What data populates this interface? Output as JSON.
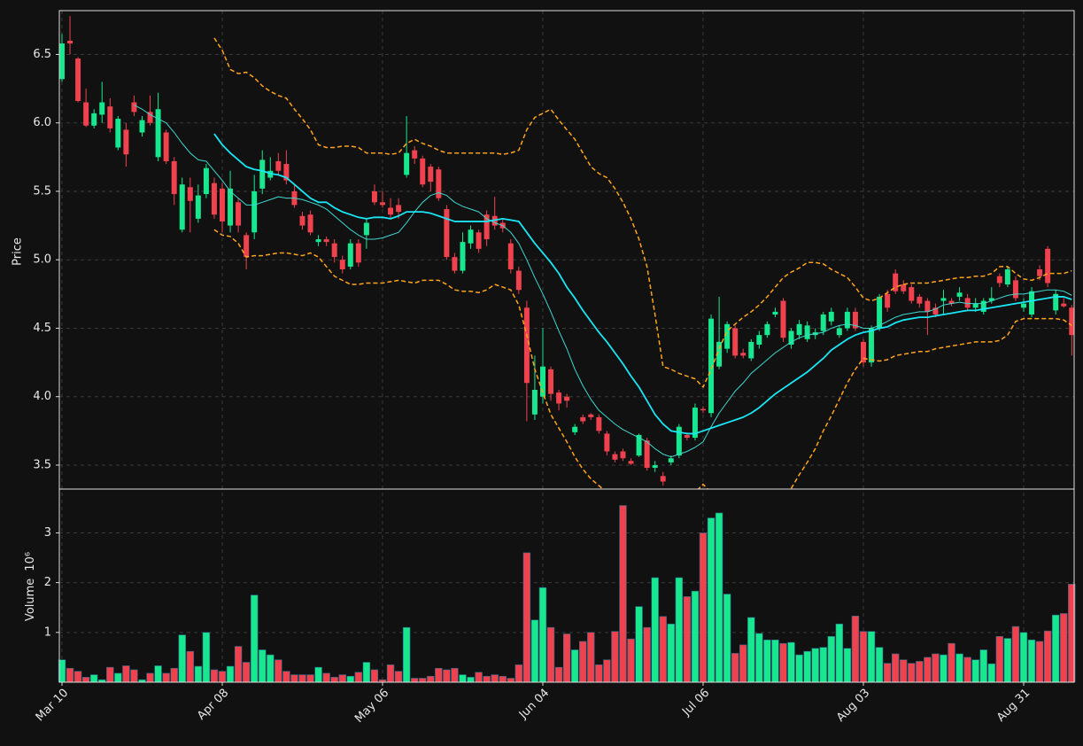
{
  "chart_data": {
    "type": "candlestick",
    "ylabel": "Price",
    "volume_label": "Volume",
    "volume_scale": "10⁶",
    "categories": [
      "Mar 10",
      null,
      null,
      null,
      null,
      null,
      null,
      null,
      null,
      null,
      null,
      null,
      null,
      null,
      null,
      null,
      null,
      null,
      null,
      null,
      "Apr 08",
      null,
      null,
      null,
      null,
      null,
      null,
      null,
      null,
      null,
      null,
      null,
      null,
      null,
      null,
      null,
      null,
      null,
      null,
      null,
      "May 06",
      null,
      null,
      null,
      null,
      null,
      null,
      null,
      null,
      null,
      null,
      null,
      null,
      null,
      null,
      null,
      null,
      null,
      null,
      null,
      "Jun 04",
      null,
      null,
      null,
      null,
      null,
      null,
      null,
      null,
      null,
      null,
      null,
      null,
      null,
      null,
      null,
      null,
      null,
      null,
      null,
      "Jul 06",
      null,
      null,
      null,
      null,
      null,
      null,
      null,
      null,
      null,
      null,
      null,
      null,
      null,
      null,
      null,
      null,
      null,
      null,
      null,
      "Aug 03",
      null,
      null,
      null,
      null,
      null,
      null,
      null,
      null,
      null,
      null,
      null,
      null,
      null,
      null,
      null,
      null,
      null,
      null,
      null,
      "Aug 31",
      null,
      null,
      null,
      null,
      null,
      null
    ],
    "open": [
      6.32,
      6.6,
      6.47,
      6.15,
      5.98,
      6.06,
      6.12,
      5.82,
      5.95,
      6.15,
      5.93,
      6.08,
      5.75,
      5.93,
      5.72,
      5.22,
      5.53,
      5.3,
      5.48,
      5.56,
      5.52,
      5.25,
      5.42,
      5.18,
      5.2,
      5.52,
      5.6,
      5.72,
      5.7,
      5.5,
      5.32,
      5.33,
      5.13,
      5.15,
      5.12,
      5.0,
      4.95,
      5.12,
      5.18,
      5.5,
      5.42,
      5.38,
      5.4,
      5.62,
      5.8,
      5.74,
      5.68,
      5.66,
      5.37,
      5.02,
      4.92,
      5.12,
      5.2,
      5.33,
      5.32,
      5.27,
      5.12,
      4.92,
      4.65,
      3.87,
      4.0,
      4.2,
      4.03,
      4.0,
      3.74,
      3.85,
      3.87,
      3.85,
      3.73,
      3.58,
      3.6,
      3.53,
      3.57,
      3.68,
      3.48,
      3.42,
      3.52,
      3.57,
      3.72,
      3.7,
      3.91,
      3.88,
      4.22,
      4.35,
      4.5,
      4.32,
      4.28,
      4.38,
      4.45,
      4.6,
      4.7,
      4.38,
      4.45,
      4.42,
      4.45,
      4.48,
      4.55,
      4.45,
      4.5,
      4.62,
      4.4,
      4.25,
      4.5,
      4.75,
      4.9,
      4.82,
      4.8,
      4.73,
      4.7,
      4.65,
      4.7,
      4.7,
      4.73,
      4.72,
      4.65,
      4.62,
      4.7,
      4.88,
      4.82,
      4.85,
      4.65,
      4.6,
      4.93,
      5.08,
      4.63,
      4.68,
      4.65
    ],
    "high": [
      6.65,
      6.78,
      6.48,
      6.25,
      6.1,
      6.3,
      6.18,
      6.05,
      6.0,
      6.2,
      6.05,
      6.2,
      6.22,
      5.95,
      5.75,
      5.6,
      5.6,
      5.55,
      5.7,
      5.6,
      5.56,
      5.65,
      5.45,
      5.2,
      5.62,
      5.8,
      5.75,
      5.78,
      5.8,
      5.55,
      5.35,
      5.36,
      5.18,
      5.17,
      5.15,
      5.03,
      5.15,
      5.15,
      5.3,
      5.55,
      5.5,
      5.45,
      5.45,
      6.05,
      5.83,
      5.76,
      5.7,
      5.68,
      5.4,
      5.05,
      5.2,
      5.25,
      5.22,
      5.36,
      5.46,
      5.3,
      5.15,
      4.95,
      4.7,
      4.3,
      4.5,
      4.22,
      4.05,
      4.02,
      3.8,
      3.87,
      3.88,
      3.87,
      3.75,
      3.6,
      3.62,
      3.55,
      3.73,
      3.7,
      3.53,
      3.45,
      3.57,
      3.8,
      3.74,
      3.95,
      3.93,
      4.6,
      4.73,
      4.55,
      4.52,
      4.35,
      4.42,
      4.48,
      4.55,
      4.65,
      4.72,
      4.5,
      4.56,
      4.55,
      4.5,
      4.62,
      4.65,
      4.52,
      4.65,
      4.65,
      4.42,
      4.52,
      4.75,
      4.78,
      4.93,
      4.85,
      4.82,
      4.75,
      4.72,
      4.68,
      4.78,
      4.72,
      4.8,
      4.75,
      4.72,
      4.72,
      4.8,
      4.9,
      4.95,
      4.88,
      4.72,
      4.8,
      4.96,
      5.1,
      4.78,
      4.72,
      4.67
    ],
    "low": [
      6.3,
      6.5,
      6.15,
      5.97,
      5.96,
      6.0,
      5.93,
      5.8,
      5.68,
      6.05,
      5.9,
      5.98,
      5.72,
      5.7,
      5.4,
      5.2,
      5.2,
      5.27,
      5.45,
      5.3,
      5.2,
      5.2,
      5.2,
      4.93,
      5.15,
      5.48,
      5.58,
      5.62,
      5.55,
      5.38,
      5.22,
      5.18,
      5.1,
      5.1,
      4.98,
      4.9,
      4.93,
      4.95,
      5.08,
      5.4,
      5.38,
      5.3,
      5.3,
      5.6,
      5.7,
      5.53,
      5.5,
      5.43,
      5.0,
      4.9,
      4.9,
      5.08,
      5.05,
      5.1,
      5.22,
      5.2,
      4.9,
      4.75,
      3.82,
      3.83,
      3.95,
      3.97,
      3.9,
      3.92,
      3.72,
      3.8,
      3.83,
      3.73,
      3.57,
      3.52,
      3.53,
      3.5,
      3.56,
      3.46,
      3.45,
      3.35,
      3.5,
      3.55,
      3.68,
      3.68,
      3.88,
      3.85,
      4.2,
      4.32,
      4.28,
      4.28,
      4.26,
      4.35,
      4.43,
      4.58,
      4.4,
      4.35,
      4.42,
      4.4,
      4.42,
      4.45,
      4.52,
      4.43,
      4.48,
      4.48,
      4.22,
      4.22,
      4.48,
      4.62,
      4.75,
      4.75,
      4.68,
      4.65,
      4.45,
      4.58,
      4.6,
      4.66,
      4.7,
      4.63,
      4.62,
      4.6,
      4.68,
      4.8,
      4.8,
      4.7,
      4.62,
      4.58,
      4.85,
      4.8,
      4.6,
      4.65,
      4.3
    ],
    "close": [
      6.58,
      6.58,
      6.16,
      5.98,
      6.07,
      6.15,
      5.96,
      6.03,
      5.77,
      6.08,
      6.02,
      6.0,
      6.1,
      5.72,
      5.48,
      5.55,
      5.43,
      5.47,
      5.67,
      5.33,
      5.28,
      5.52,
      5.25,
      5.02,
      5.5,
      5.73,
      5.65,
      5.65,
      5.58,
      5.4,
      5.25,
      5.2,
      5.15,
      5.13,
      5.02,
      4.93,
      5.12,
      4.98,
      5.27,
      5.42,
      5.4,
      5.33,
      5.35,
      5.78,
      5.74,
      5.55,
      5.57,
      5.45,
      5.02,
      4.92,
      5.13,
      5.22,
      5.08,
      5.15,
      5.25,
      5.23,
      4.93,
      4.78,
      4.1,
      4.05,
      4.22,
      4.02,
      3.95,
      3.97,
      3.78,
      3.82,
      3.85,
      3.75,
      3.6,
      3.54,
      3.55,
      3.51,
      3.72,
      3.48,
      3.5,
      3.38,
      3.55,
      3.78,
      3.7,
      3.92,
      3.9,
      4.57,
      4.4,
      4.53,
      4.3,
      4.3,
      4.4,
      4.45,
      4.53,
      4.62,
      4.43,
      4.48,
      4.53,
      4.52,
      4.47,
      4.6,
      4.62,
      4.5,
      4.62,
      4.5,
      4.25,
      4.5,
      4.73,
      4.65,
      4.77,
      4.77,
      4.7,
      4.68,
      4.62,
      4.6,
      4.72,
      4.68,
      4.76,
      4.65,
      4.68,
      4.7,
      4.72,
      4.83,
      4.93,
      4.72,
      4.68,
      4.77,
      4.88,
      4.83,
      4.75,
      4.66,
      4.45
    ],
    "volume": [
      0.45,
      0.28,
      0.22,
      0.1,
      0.15,
      0.05,
      0.3,
      0.18,
      0.33,
      0.25,
      0.05,
      0.18,
      0.33,
      0.18,
      0.28,
      0.95,
      0.62,
      0.32,
      1.0,
      0.25,
      0.22,
      0.32,
      0.72,
      0.4,
      1.75,
      0.65,
      0.55,
      0.45,
      0.22,
      0.15,
      0.15,
      0.15,
      0.3,
      0.18,
      0.1,
      0.15,
      0.12,
      0.2,
      0.4,
      0.25,
      0.05,
      0.35,
      0.22,
      1.1,
      0.08,
      0.08,
      0.12,
      0.28,
      0.25,
      0.28,
      0.15,
      0.1,
      0.2,
      0.12,
      0.15,
      0.12,
      0.08,
      0.35,
      2.6,
      1.25,
      1.9,
      1.1,
      0.3,
      0.97,
      0.65,
      0.82,
      1.0,
      0.35,
      0.45,
      1.02,
      3.55,
      0.87,
      1.52,
      1.1,
      2.1,
      1.32,
      1.17,
      2.1,
      1.72,
      1.83,
      3.0,
      3.3,
      3.4,
      1.77,
      0.58,
      0.75,
      1.3,
      0.98,
      0.85,
      0.85,
      0.78,
      0.8,
      0.55,
      0.62,
      0.68,
      0.7,
      0.92,
      1.17,
      0.68,
      1.33,
      1.02,
      1.02,
      0.7,
      0.38,
      0.57,
      0.45,
      0.38,
      0.42,
      0.5,
      0.57,
      0.55,
      0.78,
      0.57,
      0.5,
      0.45,
      0.65,
      0.37,
      0.92,
      0.88,
      1.12,
      1.0,
      0.85,
      0.82,
      1.03,
      1.35,
      1.38,
      1.97
    ],
    "up_color": "#17e88f",
    "down_color": "#f0424e",
    "moving_averages": [
      {
        "color": "#3fd8d0",
        "values": [
          null,
          null,
          null,
          null,
          null,
          null,
          null,
          null,
          null,
          6.13,
          6.1,
          6.06,
          6.03,
          6.0,
          5.93,
          5.85,
          5.78,
          5.73,
          5.72,
          5.65,
          5.58,
          5.5,
          5.45,
          5.4,
          5.4,
          5.42,
          5.44,
          5.46,
          5.45,
          5.45,
          5.44,
          5.42,
          5.4,
          5.37,
          5.32,
          5.27,
          5.22,
          5.18,
          5.15,
          5.15,
          5.16,
          5.18,
          5.2,
          5.27,
          5.35,
          5.42,
          5.47,
          5.49,
          5.47,
          5.42,
          5.39,
          5.37,
          5.35,
          5.3,
          5.27,
          5.25,
          5.2,
          5.12,
          5.0,
          4.87,
          4.75,
          4.62,
          4.48,
          4.35,
          4.2,
          4.08,
          3.98,
          3.9,
          3.85,
          3.8,
          3.76,
          3.73,
          3.7,
          3.67,
          3.62,
          3.58,
          3.56,
          3.58,
          3.6,
          3.63,
          3.67,
          3.78,
          3.88,
          3.96,
          4.04,
          4.1,
          4.17,
          4.22,
          4.27,
          4.32,
          4.36,
          4.4,
          4.43,
          4.45,
          4.46,
          4.47,
          4.5,
          4.52,
          4.53,
          4.52,
          4.5,
          4.5,
          4.52,
          4.55,
          4.58,
          4.6,
          4.61,
          4.62,
          4.62,
          4.64,
          4.67,
          4.68,
          4.69,
          4.68,
          4.68,
          4.68,
          4.7,
          4.72,
          4.74,
          4.75,
          4.75,
          4.76,
          4.77,
          4.78,
          4.78,
          4.77,
          4.74
        ]
      },
      {
        "color": "#19e6f5",
        "values": [
          null,
          null,
          null,
          null,
          null,
          null,
          null,
          null,
          null,
          null,
          null,
          null,
          null,
          null,
          null,
          null,
          null,
          null,
          null,
          5.92,
          5.84,
          5.78,
          5.73,
          5.68,
          5.66,
          5.65,
          5.63,
          5.62,
          5.6,
          5.55,
          5.5,
          5.45,
          5.42,
          5.42,
          5.38,
          5.35,
          5.33,
          5.31,
          5.3,
          5.31,
          5.31,
          5.3,
          5.32,
          5.35,
          5.35,
          5.35,
          5.34,
          5.32,
          5.3,
          5.28,
          5.28,
          5.28,
          5.28,
          5.28,
          5.29,
          5.3,
          5.29,
          5.28,
          5.2,
          5.12,
          5.05,
          4.98,
          4.9,
          4.8,
          4.72,
          4.63,
          4.55,
          4.47,
          4.4,
          4.32,
          4.24,
          4.15,
          4.07,
          3.97,
          3.87,
          3.8,
          3.75,
          3.74,
          3.73,
          3.73,
          3.75,
          3.77,
          3.79,
          3.81,
          3.83,
          3.85,
          3.88,
          3.92,
          3.97,
          4.02,
          4.06,
          4.1,
          4.14,
          4.18,
          4.23,
          4.28,
          4.34,
          4.38,
          4.42,
          4.45,
          4.47,
          4.48,
          4.5,
          4.51,
          4.54,
          4.56,
          4.57,
          4.58,
          4.58,
          4.59,
          4.6,
          4.61,
          4.62,
          4.63,
          4.63,
          4.64,
          4.65,
          4.66,
          4.67,
          4.68,
          4.69,
          4.7,
          4.71,
          4.72,
          4.73,
          4.73,
          4.71
        ]
      }
    ],
    "bollinger": {
      "color": "#ffa41b",
      "upper": [
        null,
        null,
        null,
        null,
        null,
        null,
        null,
        null,
        null,
        null,
        null,
        null,
        null,
        null,
        null,
        null,
        null,
        null,
        null,
        6.62,
        6.53,
        6.39,
        6.36,
        6.37,
        6.33,
        6.27,
        6.23,
        6.2,
        6.18,
        6.1,
        6.03,
        5.95,
        5.84,
        5.82,
        5.82,
        5.83,
        5.83,
        5.82,
        5.78,
        5.78,
        5.78,
        5.77,
        5.78,
        5.85,
        5.88,
        5.85,
        5.83,
        5.8,
        5.78,
        5.78,
        5.78,
        5.78,
        5.78,
        5.78,
        5.78,
        5.77,
        5.78,
        5.8,
        5.95,
        6.04,
        6.07,
        6.1,
        6.02,
        5.95,
        5.88,
        5.78,
        5.68,
        5.63,
        5.6,
        5.52,
        5.42,
        5.3,
        5.15,
        4.95,
        4.6,
        4.22,
        4.2,
        4.17,
        4.15,
        4.13,
        4.07,
        4.2,
        4.35,
        4.48,
        4.53,
        4.58,
        4.62,
        4.67,
        4.73,
        4.8,
        4.87,
        4.91,
        4.94,
        4.98,
        4.98,
        4.97,
        4.93,
        4.9,
        4.87,
        4.8,
        4.72,
        4.7,
        4.72,
        4.76,
        4.8,
        4.82,
        4.83,
        4.83,
        4.83,
        4.84,
        4.85,
        4.86,
        4.87,
        4.87,
        4.88,
        4.88,
        4.9,
        4.95,
        4.95,
        4.9,
        4.86,
        4.85,
        4.87,
        4.9,
        4.9,
        4.9,
        4.92
      ],
      "lower": [
        null,
        null,
        null,
        null,
        null,
        null,
        null,
        null,
        null,
        null,
        null,
        null,
        null,
        null,
        null,
        null,
        null,
        null,
        null,
        5.22,
        5.18,
        5.17,
        5.12,
        5.02,
        5.03,
        5.03,
        5.04,
        5.05,
        5.05,
        5.04,
        5.03,
        5.05,
        5.02,
        4.95,
        4.88,
        4.85,
        4.82,
        4.82,
        4.83,
        4.83,
        4.83,
        4.84,
        4.85,
        4.84,
        4.83,
        4.85,
        4.85,
        4.85,
        4.82,
        4.78,
        4.77,
        4.77,
        4.76,
        4.78,
        4.82,
        4.8,
        4.78,
        4.67,
        4.45,
        4.2,
        4.03,
        3.87,
        3.77,
        3.67,
        3.56,
        3.47,
        3.4,
        3.35,
        3.3,
        3.25,
        3.18,
        3.1,
        3.0,
        2.95,
        2.95,
        3.0,
        3.05,
        3.1,
        3.2,
        3.3,
        3.36,
        3.3,
        3.2,
        3.1,
        3.05,
        3.05,
        3.1,
        3.2,
        3.27,
        3.3,
        3.31,
        3.33,
        3.43,
        3.52,
        3.62,
        3.75,
        3.86,
        3.98,
        4.1,
        4.2,
        4.28,
        4.27,
        4.26,
        4.27,
        4.3,
        4.31,
        4.32,
        4.33,
        4.33,
        4.35,
        4.36,
        4.37,
        4.38,
        4.39,
        4.4,
        4.4,
        4.4,
        4.41,
        4.45,
        4.55,
        4.57,
        4.57,
        4.57,
        4.57,
        4.57,
        4.56,
        4.52
      ]
    },
    "xlim": [
      -0.33,
      126.3
    ],
    "ylim": [
      3.325,
      6.82
    ],
    "yticks": [
      3.5,
      {
        "value": 4,
        "label": "4.0"
      },
      4.5,
      {
        "value": 5,
        "label": "5.0"
      },
      5.5,
      {
        "value": 6,
        "label": "6.0"
      },
      6.5
    ],
    "volume_ylim": [
      0,
      3.88
    ],
    "volume_yticks": [
      1,
      2,
      3
    ],
    "grid": true
  }
}
